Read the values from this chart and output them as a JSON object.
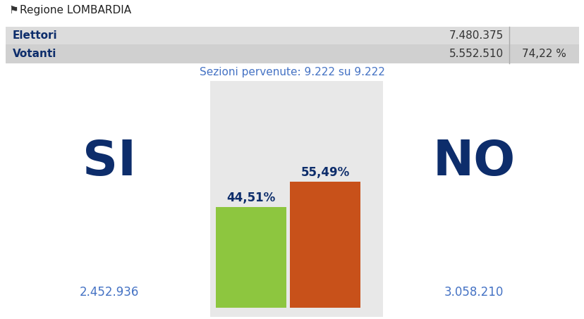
{
  "title_region": "Regione LOMBARDIA",
  "elettori_label": "Elettori",
  "elettori_value": "7.480.375",
  "votanti_label": "Votanti",
  "votanti_value": "5.552.510",
  "votanti_pct": "74,22 %",
  "sezioni_text": "Sezioni pervenute: 9.222 su 9.222",
  "si_label": "SI",
  "no_label": "NO",
  "si_pct": "44,51%",
  "no_pct": "55,49%",
  "si_votes": "2.452.936",
  "no_votes": "3.058.210",
  "si_value": 44.51,
  "no_value": 55.49,
  "bar_color_si": "#8dc63f",
  "bar_color_no": "#c8511a",
  "chart_bg_color": "#e8e8e8",
  "text_color_dark": "#0d2d6b",
  "text_color_teal": "#4472c4",
  "row1_bg": "#dcdcdc",
  "row2_bg": "#d0d0d0",
  "fig_bg": "#ffffff",
  "divider_color": "#aaaaaa",
  "title_color": "#222222"
}
